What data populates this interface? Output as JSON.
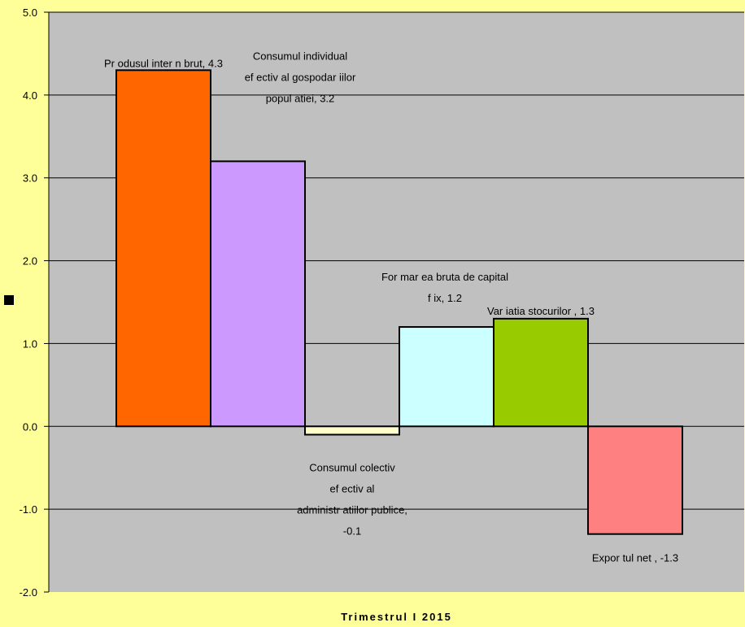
{
  "chart_data": {
    "type": "bar",
    "categories": [
      "Trimestrul I 2015"
    ],
    "xlabel": "Trimestrul I 2015",
    "ylim": [
      -2.0,
      5.0
    ],
    "ytick_step": 1.0,
    "grid": true,
    "legend": "left",
    "series": [
      {
        "name": "Produsul intern brut",
        "values": [
          4.3
        ],
        "color": "#ff6600",
        "label_lines": [
          "Pr odusul inter n brut, 4.3"
        ]
      },
      {
        "name": "Consumul individual efectiv al gospodariilor populatiei",
        "values": [
          3.2
        ],
        "color": "#cc99ff",
        "label_lines": [
          "Consumul individual",
          "ef ectiv al gospodar iilor",
          "popul atiei, 3.2"
        ]
      },
      {
        "name": "Consumul colectiv efectiv al administratiilor publice",
        "values": [
          -0.1
        ],
        "color": "#ffffcc",
        "label_lines": [
          "Consumul colectiv",
          "ef ectiv al",
          "administr atiilor publice,",
          "-0.1"
        ]
      },
      {
        "name": "Formarea bruta de capital fix",
        "values": [
          1.2
        ],
        "color": "#ccffff",
        "label_lines": [
          "For mar ea bruta de capital",
          "f ix, 1.2"
        ]
      },
      {
        "name": "Variatia stocurilor",
        "values": [
          1.3
        ],
        "color": "#99cc00",
        "label_lines": [
          "Var iatia stocurilor , 1.3"
        ]
      },
      {
        "name": "Exportul net",
        "values": [
          -1.3
        ],
        "color": "#ff8080",
        "label_lines": [
          "Expor tul net , -1.3"
        ]
      }
    ]
  },
  "colors": {
    "page_background": "#ffff99",
    "plot_background": "#c0c0c0",
    "gridline": "#000000",
    "legend_key": "#000000"
  }
}
